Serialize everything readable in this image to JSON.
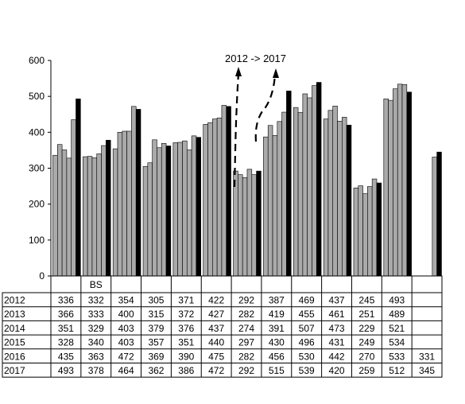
{
  "chart_data": {
    "type": "bar",
    "ylim": [
      0,
      600
    ],
    "y_ticks": [
      "0",
      "100",
      "200",
      "300",
      "400",
      "500",
      "600"
    ],
    "grid": false,
    "annotation": "2012 -> 2017",
    "group_labels": [
      "",
      "BS",
      "",
      "",
      "",
      "",
      "",
      "",
      "",
      "",
      "",
      "",
      ""
    ],
    "series": [
      {
        "name": "2012",
        "values": [
          336,
          332,
          354,
          305,
          371,
          422,
          292,
          387,
          469,
          437,
          245,
          493,
          null
        ]
      },
      {
        "name": "2013",
        "values": [
          366,
          333,
          400,
          315,
          372,
          427,
          282,
          419,
          455,
          461,
          251,
          489,
          null
        ]
      },
      {
        "name": "2014",
        "values": [
          351,
          329,
          403,
          379,
          376,
          437,
          274,
          391,
          507,
          473,
          229,
          521,
          null
        ]
      },
      {
        "name": "2015",
        "values": [
          328,
          340,
          403,
          357,
          351,
          440,
          297,
          430,
          496,
          431,
          249,
          534,
          null
        ]
      },
      {
        "name": "2016",
        "values": [
          435,
          363,
          472,
          369,
          390,
          475,
          282,
          456,
          530,
          442,
          270,
          533,
          331
        ]
      },
      {
        "name": "2017",
        "values": [
          493,
          378,
          464,
          362,
          386,
          472,
          292,
          515,
          539,
          420,
          259,
          512,
          345
        ]
      }
    ],
    "colors": {
      "bar": "#aaaaaa",
      "last_bar": "#000000",
      "outline": "#000000"
    }
  }
}
